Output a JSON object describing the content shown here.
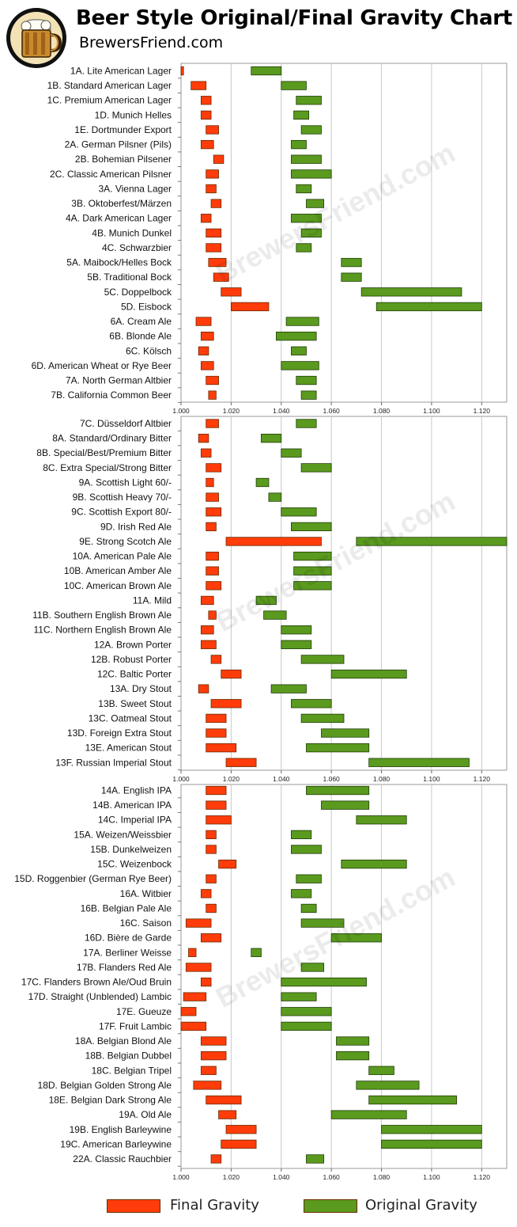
{
  "header": {
    "title": "Beer Style Original/Final Gravity Chart",
    "subtitle": "BrewersFriend.com",
    "watermark": "BrewersFriend.com"
  },
  "colors": {
    "final_gravity": "#ff3c0a",
    "original_gravity": "#5a9a1e",
    "grid": "#c8c8c8",
    "frame": "#9a9a9a"
  },
  "legend": {
    "final_label": "Final Gravity",
    "original_label": "Original Gravity"
  },
  "chart_data": [
    {
      "type": "bar",
      "xlim": [
        1.0,
        1.13
      ],
      "xticks": [
        "1.000",
        "1.020",
        "1.040",
        "1.060",
        "1.080",
        "1.100",
        "1.120"
      ],
      "grid": true,
      "series": [
        {
          "name": "Final Gravity",
          "field": "fg"
        },
        {
          "name": "Original Gravity",
          "field": "og"
        }
      ],
      "rows": [
        {
          "label": "1A. Lite American Lager",
          "fg": [
            1.0,
            1.001
          ],
          "og": [
            1.028,
            1.04
          ]
        },
        {
          "label": "1B. Standard American Lager",
          "fg": [
            1.004,
            1.01
          ],
          "og": [
            1.04,
            1.05
          ]
        },
        {
          "label": "1C. Premium American Lager",
          "fg": [
            1.008,
            1.012
          ],
          "og": [
            1.046,
            1.056
          ]
        },
        {
          "label": "1D. Munich Helles",
          "fg": [
            1.008,
            1.012
          ],
          "og": [
            1.045,
            1.051
          ]
        },
        {
          "label": "1E. Dortmunder Export",
          "fg": [
            1.01,
            1.015
          ],
          "og": [
            1.048,
            1.056
          ]
        },
        {
          "label": "2A. German Pilsner (Pils)",
          "fg": [
            1.008,
            1.013
          ],
          "og": [
            1.044,
            1.05
          ]
        },
        {
          "label": "2B. Bohemian Pilsener",
          "fg": [
            1.013,
            1.017
          ],
          "og": [
            1.044,
            1.056
          ]
        },
        {
          "label": "2C. Classic American Pilsner",
          "fg": [
            1.01,
            1.015
          ],
          "og": [
            1.044,
            1.06
          ]
        },
        {
          "label": "3A. Vienna Lager",
          "fg": [
            1.01,
            1.014
          ],
          "og": [
            1.046,
            1.052
          ]
        },
        {
          "label": "3B. Oktoberfest/Märzen",
          "fg": [
            1.012,
            1.016
          ],
          "og": [
            1.05,
            1.057
          ]
        },
        {
          "label": "4A. Dark American Lager",
          "fg": [
            1.008,
            1.012
          ],
          "og": [
            1.044,
            1.056
          ]
        },
        {
          "label": "4B. Munich Dunkel",
          "fg": [
            1.01,
            1.016
          ],
          "og": [
            1.048,
            1.056
          ]
        },
        {
          "label": "4C. Schwarzbier",
          "fg": [
            1.01,
            1.016
          ],
          "og": [
            1.046,
            1.052
          ]
        },
        {
          "label": "5A. Maibock/Helles Bock",
          "fg": [
            1.011,
            1.018
          ],
          "og": [
            1.064,
            1.072
          ]
        },
        {
          "label": "5B. Traditional Bock",
          "fg": [
            1.013,
            1.019
          ],
          "og": [
            1.064,
            1.072
          ]
        },
        {
          "label": "5C. Doppelbock",
          "fg": [
            1.016,
            1.024
          ],
          "og": [
            1.072,
            1.112
          ]
        },
        {
          "label": "5D. Eisbock",
          "fg": [
            1.02,
            1.035
          ],
          "og": [
            1.078,
            1.12
          ]
        },
        {
          "label": "6A. Cream Ale",
          "fg": [
            1.006,
            1.012
          ],
          "og": [
            1.042,
            1.055
          ]
        },
        {
          "label": "6B. Blonde Ale",
          "fg": [
            1.008,
            1.013
          ],
          "og": [
            1.038,
            1.054
          ]
        },
        {
          "label": "6C. Kölsch",
          "fg": [
            1.007,
            1.011
          ],
          "og": [
            1.044,
            1.05
          ]
        },
        {
          "label": "6D. American Wheat or Rye Beer",
          "fg": [
            1.008,
            1.013
          ],
          "og": [
            1.04,
            1.055
          ]
        },
        {
          "label": "7A. North German Altbier",
          "fg": [
            1.01,
            1.015
          ],
          "og": [
            1.046,
            1.054
          ]
        },
        {
          "label": "7B. California Common Beer",
          "fg": [
            1.011,
            1.014
          ],
          "og": [
            1.048,
            1.054
          ]
        }
      ]
    },
    {
      "type": "bar",
      "xlim": [
        1.0,
        1.13
      ],
      "xticks": [
        "1.000",
        "1.020",
        "1.040",
        "1.060",
        "1.080",
        "1.100",
        "1.120"
      ],
      "grid": true,
      "series": [
        {
          "name": "Final Gravity",
          "field": "fg"
        },
        {
          "name": "Original Gravity",
          "field": "og"
        }
      ],
      "rows": [
        {
          "label": "7C. Düsseldorf Altbier",
          "fg": [
            1.01,
            1.015
          ],
          "og": [
            1.046,
            1.054
          ]
        },
        {
          "label": "8A. Standard/Ordinary Bitter",
          "fg": [
            1.007,
            1.011
          ],
          "og": [
            1.032,
            1.04
          ]
        },
        {
          "label": "8B. Special/Best/Premium Bitter",
          "fg": [
            1.008,
            1.012
          ],
          "og": [
            1.04,
            1.048
          ]
        },
        {
          "label": "8C. Extra Special/Strong Bitter",
          "fg": [
            1.01,
            1.016
          ],
          "og": [
            1.048,
            1.06
          ]
        },
        {
          "label": "9A. Scottish Light 60/-",
          "fg": [
            1.01,
            1.013
          ],
          "og": [
            1.03,
            1.035
          ]
        },
        {
          "label": "9B. Scottish Heavy 70/-",
          "fg": [
            1.01,
            1.015
          ],
          "og": [
            1.035,
            1.04
          ]
        },
        {
          "label": "9C. Scottish Export 80/-",
          "fg": [
            1.01,
            1.016
          ],
          "og": [
            1.04,
            1.054
          ]
        },
        {
          "label": "9D. Irish Red Ale",
          "fg": [
            1.01,
            1.014
          ],
          "og": [
            1.044,
            1.06
          ]
        },
        {
          "label": "9E. Strong Scotch Ale",
          "fg": [
            1.018,
            1.056
          ],
          "og": [
            1.07,
            1.13
          ]
        },
        {
          "label": "10A. American Pale Ale",
          "fg": [
            1.01,
            1.015
          ],
          "og": [
            1.045,
            1.06
          ]
        },
        {
          "label": "10B. American Amber Ale",
          "fg": [
            1.01,
            1.015
          ],
          "og": [
            1.045,
            1.06
          ]
        },
        {
          "label": "10C. American Brown Ale",
          "fg": [
            1.01,
            1.016
          ],
          "og": [
            1.045,
            1.06
          ]
        },
        {
          "label": "11A. Mild",
          "fg": [
            1.008,
            1.013
          ],
          "og": [
            1.03,
            1.038
          ]
        },
        {
          "label": "11B. Southern English Brown Ale",
          "fg": [
            1.011,
            1.014
          ],
          "og": [
            1.033,
            1.042
          ]
        },
        {
          "label": "11C. Northern English Brown Ale",
          "fg": [
            1.008,
            1.013
          ],
          "og": [
            1.04,
            1.052
          ]
        },
        {
          "label": "12A. Brown Porter",
          "fg": [
            1.008,
            1.014
          ],
          "og": [
            1.04,
            1.052
          ]
        },
        {
          "label": "12B. Robust Porter",
          "fg": [
            1.012,
            1.016
          ],
          "og": [
            1.048,
            1.065
          ]
        },
        {
          "label": "12C. Baltic Porter",
          "fg": [
            1.016,
            1.024
          ],
          "og": [
            1.06,
            1.09
          ]
        },
        {
          "label": "13A. Dry Stout",
          "fg": [
            1.007,
            1.011
          ],
          "og": [
            1.036,
            1.05
          ]
        },
        {
          "label": "13B. Sweet Stout",
          "fg": [
            1.012,
            1.024
          ],
          "og": [
            1.044,
            1.06
          ]
        },
        {
          "label": "13C. Oatmeal Stout",
          "fg": [
            1.01,
            1.018
          ],
          "og": [
            1.048,
            1.065
          ]
        },
        {
          "label": "13D. Foreign Extra Stout",
          "fg": [
            1.01,
            1.018
          ],
          "og": [
            1.056,
            1.075
          ]
        },
        {
          "label": "13E. American Stout",
          "fg": [
            1.01,
            1.022
          ],
          "og": [
            1.05,
            1.075
          ]
        },
        {
          "label": "13F. Russian Imperial Stout",
          "fg": [
            1.018,
            1.03
          ],
          "og": [
            1.075,
            1.115
          ]
        }
      ]
    },
    {
      "type": "bar",
      "xlim": [
        1.0,
        1.13
      ],
      "xticks": [
        "1.000",
        "1.020",
        "1.040",
        "1.060",
        "1.080",
        "1.100",
        "1.120"
      ],
      "grid": true,
      "series": [
        {
          "name": "Final Gravity",
          "field": "fg"
        },
        {
          "name": "Original Gravity",
          "field": "og"
        }
      ],
      "rows": [
        {
          "label": "14A. English IPA",
          "fg": [
            1.01,
            1.018
          ],
          "og": [
            1.05,
            1.075
          ]
        },
        {
          "label": "14B. American IPA",
          "fg": [
            1.01,
            1.018
          ],
          "og": [
            1.056,
            1.075
          ]
        },
        {
          "label": "14C. Imperial IPA",
          "fg": [
            1.01,
            1.02
          ],
          "og": [
            1.07,
            1.09
          ]
        },
        {
          "label": "15A. Weizen/Weissbier",
          "fg": [
            1.01,
            1.014
          ],
          "og": [
            1.044,
            1.052
          ]
        },
        {
          "label": "15B. Dunkelweizen",
          "fg": [
            1.01,
            1.014
          ],
          "og": [
            1.044,
            1.056
          ]
        },
        {
          "label": "15C. Weizenbock",
          "fg": [
            1.015,
            1.022
          ],
          "og": [
            1.064,
            1.09
          ]
        },
        {
          "label": "15D. Roggenbier (German Rye Beer)",
          "fg": [
            1.01,
            1.014
          ],
          "og": [
            1.046,
            1.056
          ]
        },
        {
          "label": "16A. Witbier",
          "fg": [
            1.008,
            1.012
          ],
          "og": [
            1.044,
            1.052
          ]
        },
        {
          "label": "16B. Belgian Pale Ale",
          "fg": [
            1.01,
            1.014
          ],
          "og": [
            1.048,
            1.054
          ]
        },
        {
          "label": "16C. Saison",
          "fg": [
            1.002,
            1.012
          ],
          "og": [
            1.048,
            1.065
          ]
        },
        {
          "label": "16D. Bière de Garde",
          "fg": [
            1.008,
            1.016
          ],
          "og": [
            1.06,
            1.08
          ]
        },
        {
          "label": "17A. Berliner Weisse",
          "fg": [
            1.003,
            1.006
          ],
          "og": [
            1.028,
            1.032
          ]
        },
        {
          "label": "17B. Flanders Red Ale",
          "fg": [
            1.002,
            1.012
          ],
          "og": [
            1.048,
            1.057
          ]
        },
        {
          "label": "17C. Flanders Brown Ale/Oud Bruin",
          "fg": [
            1.008,
            1.012
          ],
          "og": [
            1.04,
            1.074
          ]
        },
        {
          "label": "17D. Straight (Unblended) Lambic",
          "fg": [
            1.001,
            1.01
          ],
          "og": [
            1.04,
            1.054
          ]
        },
        {
          "label": "17E. Gueuze",
          "fg": [
            1.0,
            1.006
          ],
          "og": [
            1.04,
            1.06
          ]
        },
        {
          "label": "17F. Fruit Lambic",
          "fg": [
            1.0,
            1.01
          ],
          "og": [
            1.04,
            1.06
          ]
        },
        {
          "label": "18A. Belgian Blond Ale",
          "fg": [
            1.008,
            1.018
          ],
          "og": [
            1.062,
            1.075
          ]
        },
        {
          "label": "18B. Belgian Dubbel",
          "fg": [
            1.008,
            1.018
          ],
          "og": [
            1.062,
            1.075
          ]
        },
        {
          "label": "18C. Belgian Tripel",
          "fg": [
            1.008,
            1.014
          ],
          "og": [
            1.075,
            1.085
          ]
        },
        {
          "label": "18D. Belgian Golden Strong Ale",
          "fg": [
            1.005,
            1.016
          ],
          "og": [
            1.07,
            1.095
          ]
        },
        {
          "label": "18E. Belgian Dark Strong Ale",
          "fg": [
            1.01,
            1.024
          ],
          "og": [
            1.075,
            1.11
          ]
        },
        {
          "label": "19A. Old Ale",
          "fg": [
            1.015,
            1.022
          ],
          "og": [
            1.06,
            1.09
          ]
        },
        {
          "label": "19B. English Barleywine",
          "fg": [
            1.018,
            1.03
          ],
          "og": [
            1.08,
            1.12
          ]
        },
        {
          "label": "19C. American Barleywine",
          "fg": [
            1.016,
            1.03
          ],
          "og": [
            1.08,
            1.12
          ]
        },
        {
          "label": "22A. Classic Rauchbier",
          "fg": [
            1.012,
            1.016
          ],
          "og": [
            1.05,
            1.057
          ]
        }
      ]
    }
  ]
}
